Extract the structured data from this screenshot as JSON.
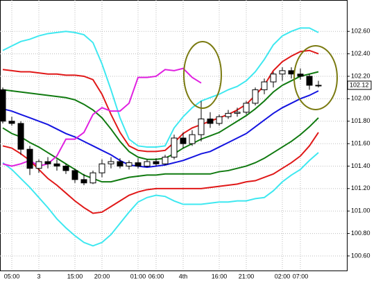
{
  "chart_data": {
    "type": "candlestick",
    "categories": [
      null,
      "05:00",
      null,
      null,
      "3",
      null,
      null,
      null,
      "15:00",
      null,
      null,
      "20:00",
      null,
      null,
      null,
      "01:00",
      null,
      "06:00",
      null,
      null,
      "4th",
      null,
      null,
      null,
      "16:00",
      null,
      null,
      "21:00",
      null,
      null,
      null,
      "02:00",
      null,
      "07:00",
      null,
      null
    ],
    "ohlc": {
      "open": [
        102.08,
        101.8,
        101.78,
        101.55,
        101.38,
        101.44,
        101.42,
        101.4,
        101.36,
        101.28,
        101.25,
        101.34,
        101.42,
        101.44,
        101.4,
        101.43,
        101.4,
        101.44,
        101.42,
        101.48,
        101.65,
        101.6,
        101.68,
        101.82,
        101.78,
        101.84,
        101.87,
        101.88,
        101.96,
        102.08,
        102.15,
        102.22,
        102.25,
        102.22,
        102.2,
        102.12
      ],
      "high": [
        102.1,
        101.84,
        101.8,
        101.58,
        101.46,
        101.48,
        101.46,
        101.42,
        101.38,
        101.33,
        101.36,
        101.46,
        101.48,
        101.47,
        101.45,
        101.47,
        101.46,
        101.47,
        101.5,
        101.68,
        101.7,
        101.72,
        101.98,
        101.88,
        101.86,
        101.9,
        101.92,
        101.98,
        102.1,
        102.18,
        102.24,
        102.28,
        102.28,
        102.27,
        102.22,
        102.16
      ],
      "low": [
        101.78,
        101.76,
        101.5,
        101.32,
        101.34,
        101.38,
        101.36,
        101.33,
        101.25,
        101.23,
        101.24,
        101.3,
        101.38,
        101.38,
        101.37,
        101.38,
        101.39,
        101.4,
        101.41,
        101.46,
        101.56,
        101.58,
        101.62,
        101.74,
        101.76,
        101.82,
        101.84,
        101.86,
        101.94,
        102.04,
        102.1,
        102.16,
        102.18,
        102.17,
        102.08,
        102.1
      ],
      "close": [
        101.8,
        101.78,
        101.55,
        101.38,
        101.44,
        101.42,
        101.4,
        101.36,
        101.28,
        101.25,
        101.34,
        101.42,
        101.44,
        101.4,
        101.43,
        101.4,
        101.44,
        101.42,
        101.48,
        101.65,
        101.6,
        101.68,
        101.82,
        101.78,
        101.84,
        101.87,
        101.88,
        101.96,
        102.08,
        102.15,
        102.22,
        102.25,
        102.22,
        102.2,
        102.12,
        102.12
      ]
    },
    "bands": [
      {
        "color": "#3ee8f0",
        "values": [
          102.43,
          102.47,
          102.51,
          102.53,
          102.56,
          102.58,
          102.59,
          102.6,
          102.59,
          102.57,
          102.5,
          102.31,
          102.08,
          101.83,
          101.64,
          101.58,
          101.57,
          101.57,
          101.58,
          101.74,
          101.84,
          101.92,
          101.98,
          102.01,
          102.04,
          102.08,
          102.11,
          102.16,
          102.24,
          102.35,
          102.48,
          102.56,
          102.6,
          102.63,
          102.63,
          102.59
        ]
      },
      {
        "color": "#e01818",
        "values": [
          102.26,
          102.25,
          102.24,
          102.24,
          102.23,
          102.22,
          102.22,
          102.21,
          102.21,
          102.2,
          102.17,
          102.04,
          101.86,
          101.7,
          101.58,
          101.54,
          101.53,
          101.53,
          101.54,
          101.61,
          101.69,
          101.74,
          101.77,
          101.8,
          101.83,
          101.86,
          101.9,
          101.95,
          102.03,
          102.12,
          102.25,
          102.33,
          102.38,
          102.42,
          102.43,
          102.4
        ]
      },
      {
        "color": "#107a10",
        "values": [
          102.08,
          102.07,
          102.06,
          102.05,
          102.04,
          102.03,
          102.02,
          102.01,
          101.99,
          101.95,
          101.9,
          101.83,
          101.73,
          101.62,
          101.53,
          101.48,
          101.46,
          101.46,
          101.47,
          101.51,
          101.56,
          101.6,
          101.64,
          101.67,
          101.7,
          101.75,
          101.8,
          101.85,
          101.91,
          101.98,
          102.06,
          102.12,
          102.16,
          102.2,
          102.22,
          102.24
        ]
      },
      {
        "color": "#1414e0",
        "values": [
          101.91,
          101.89,
          101.86,
          101.83,
          101.8,
          101.77,
          101.73,
          101.69,
          101.66,
          101.62,
          101.58,
          101.54,
          101.5,
          101.45,
          101.41,
          101.4,
          101.39,
          101.4,
          101.41,
          101.43,
          101.45,
          101.48,
          101.51,
          101.53,
          101.57,
          101.61,
          101.65,
          101.69,
          101.75,
          101.81,
          101.87,
          101.92,
          101.96,
          102.0,
          102.03,
          102.07
        ]
      },
      {
        "color": "#107a10",
        "values": [
          101.74,
          101.69,
          101.66,
          101.61,
          101.57,
          101.52,
          101.47,
          101.42,
          101.37,
          101.32,
          101.29,
          101.26,
          101.26,
          101.28,
          101.3,
          101.31,
          101.32,
          101.32,
          101.33,
          101.33,
          101.33,
          101.33,
          101.33,
          101.33,
          101.35,
          101.36,
          101.38,
          101.4,
          101.43,
          101.47,
          101.52,
          101.57,
          101.62,
          101.68,
          101.75,
          101.83
        ]
      },
      {
        "color": "#e01818",
        "values": [
          101.58,
          101.56,
          101.51,
          101.45,
          101.37,
          101.29,
          101.23,
          101.16,
          101.09,
          101.03,
          100.98,
          100.99,
          101.04,
          101.09,
          101.14,
          101.17,
          101.19,
          101.2,
          101.2,
          101.2,
          101.2,
          101.2,
          101.2,
          101.21,
          101.22,
          101.23,
          101.24,
          101.26,
          101.27,
          101.3,
          101.33,
          101.38,
          101.43,
          101.49,
          101.58,
          101.7
        ]
      },
      {
        "color": "#3ee8f0",
        "values": [
          101.43,
          101.37,
          101.29,
          101.21,
          101.12,
          101.03,
          100.93,
          100.85,
          100.78,
          100.72,
          100.69,
          100.72,
          100.79,
          100.89,
          100.99,
          101.08,
          101.12,
          101.14,
          101.13,
          101.09,
          101.06,
          101.06,
          101.06,
          101.07,
          101.08,
          101.08,
          101.09,
          101.09,
          101.11,
          101.12,
          101.18,
          101.26,
          101.32,
          101.37,
          101.45,
          101.52
        ]
      },
      {
        "color": "#e020e0",
        "values": [
          101.42,
          101.4,
          101.42,
          101.45,
          101.4,
          101.42,
          101.49,
          101.64,
          101.64,
          101.7,
          101.86,
          101.92,
          101.89,
          101.89,
          101.96,
          102.19,
          102.19,
          102.2,
          102.26,
          102.25,
          102.27,
          102.19,
          102.14,
          null,
          null,
          null,
          null,
          null,
          null,
          null,
          null,
          null,
          null,
          null,
          null,
          null
        ]
      }
    ],
    "last_price": 102.12,
    "ylim": [
      100.47,
      102.83
    ],
    "yticks": [
      {
        "value": 100.6,
        "label": "100.60"
      },
      {
        "value": 100.8,
        "label": "100.80"
      },
      {
        "value": 101.0,
        "label": "101.00"
      },
      {
        "value": 101.2,
        "label": "101.20"
      },
      {
        "value": 101.4,
        "label": "101.40"
      },
      {
        "value": 101.6,
        "label": "101.60"
      },
      {
        "value": 101.8,
        "label": "101.80"
      },
      {
        "value": 102.0,
        "label": "102.00"
      },
      {
        "value": 102.2,
        "label": "102.20"
      },
      {
        "value": 102.4,
        "label": "102.40"
      },
      {
        "value": 102.6,
        "label": "102.60"
      }
    ],
    "grid": true
  }
}
